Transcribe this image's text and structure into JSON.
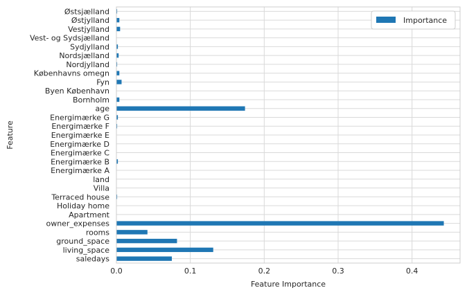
{
  "chart_data": {
    "type": "bar",
    "orientation": "horizontal",
    "categories": [
      "saledays",
      "living_space",
      "ground_space",
      "rooms",
      "owner_expenses",
      "Apartment",
      "Holiday home",
      "Terraced house",
      "Villa",
      "land",
      "Energimærke A",
      "Energimærke B",
      "Energimærke C",
      "Energimærke D",
      "Energimærke E",
      "Energimærke F",
      "Energimærke G",
      "age",
      "Bornholm",
      "Byen København",
      "Fyn",
      "Københavns omegn",
      "Nordjylland",
      "Nordsjælland",
      "Sydjylland",
      "Vest- og Sydsjælland",
      "Vestjylland",
      "Østjylland",
      "Østsjælland"
    ],
    "series": [
      {
        "name": "Importance",
        "color": "#1f77b4",
        "values": [
          0.075,
          0.131,
          0.082,
          0.042,
          0.443,
          0.0,
          0.0,
          0.001,
          0.0,
          0.0,
          0.0,
          0.002,
          0.0,
          0.0,
          0.0,
          0.001,
          0.002,
          0.174,
          0.004,
          0.0,
          0.007,
          0.004,
          0.001,
          0.003,
          0.002,
          0.0,
          0.005,
          0.004,
          0.001
        ]
      }
    ],
    "xlabel": "Feature Importance",
    "ylabel": "Feature",
    "xlim": [
      0.0,
      0.465
    ],
    "xticks": [
      "0.0",
      "0.1",
      "0.2",
      "0.3",
      "0.4"
    ],
    "xtick_values": [
      0.0,
      0.1,
      0.2,
      0.3,
      0.4
    ],
    "grid": true,
    "legend_position": "top-right"
  }
}
